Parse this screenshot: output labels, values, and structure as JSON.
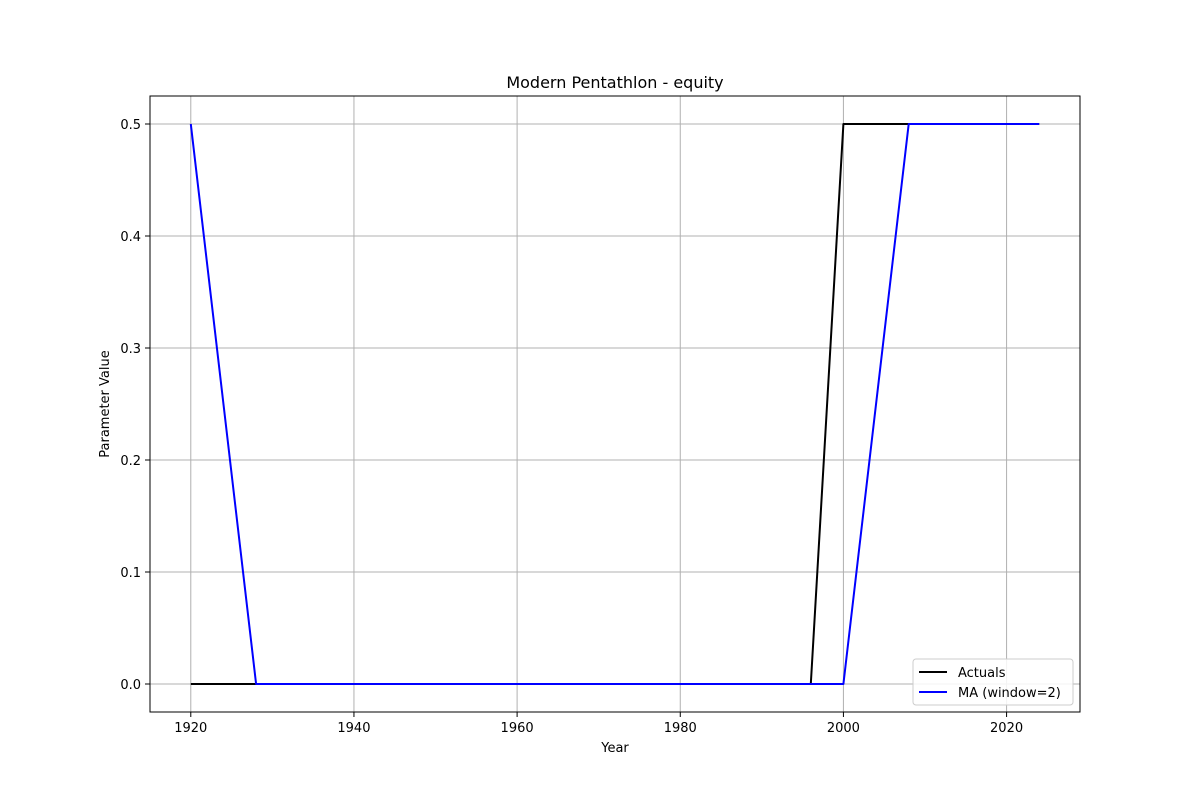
{
  "chart_data": {
    "type": "line",
    "title": "Modern Pentathlon - equity",
    "xlabel": "Year",
    "ylabel": "Parameter Value",
    "xlim": [
      1915,
      2029
    ],
    "ylim": [
      -0.025,
      0.525
    ],
    "xticks": [
      1920,
      1940,
      1960,
      1980,
      2000,
      2020
    ],
    "yticks": [
      0.0,
      0.1,
      0.2,
      0.3,
      0.4,
      0.5
    ],
    "ytick_labels": [
      "0.0",
      "0.1",
      "0.2",
      "0.3",
      "0.4",
      "0.5"
    ],
    "grid": true,
    "legend_position": "lower-right",
    "series": [
      {
        "name": "Actuals",
        "color": "#000000",
        "x": [
          1920,
          1924,
          1928,
          1932,
          1936,
          1948,
          1952,
          1956,
          1960,
          1964,
          1968,
          1972,
          1976,
          1980,
          1984,
          1988,
          1992,
          1996,
          2000,
          2004,
          2008,
          2012,
          2016,
          2020,
          2024
        ],
        "y": [
          0,
          0,
          0,
          0,
          0,
          0,
          0,
          0,
          0,
          0,
          0,
          0,
          0,
          0,
          0,
          0,
          0,
          0,
          0.5,
          0.5,
          0.5,
          0.5,
          0.5,
          0.5,
          0.5
        ]
      },
      {
        "name": "MA (window=2)",
        "color": "#0000ff",
        "x": [
          1920,
          1928,
          1932,
          1936,
          1948,
          1952,
          1956,
          1960,
          1964,
          1968,
          1972,
          1976,
          1980,
          1984,
          1988,
          1992,
          1996,
          2000,
          2008,
          2012,
          2016,
          2020,
          2024
        ],
        "y": [
          0.5,
          0,
          0,
          0,
          0,
          0,
          0,
          0,
          0,
          0,
          0,
          0,
          0,
          0,
          0,
          0,
          0,
          0,
          0.5,
          0.5,
          0.5,
          0.5,
          0.5
        ]
      }
    ]
  }
}
